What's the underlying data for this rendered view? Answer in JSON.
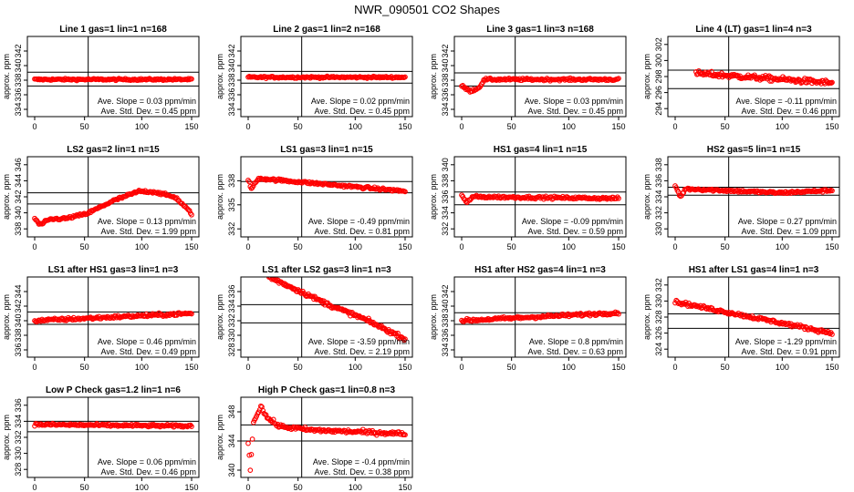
{
  "title": "NWR_090501  CO2 Shapes",
  "colors": {
    "points": "#ff0000",
    "axes": "#000000"
  },
  "chart_data": [
    {
      "type": "scatter",
      "title": "Line 1 gas=1 lin=1 n=168",
      "ylabel": "approx. ppm",
      "xlim": [
        0,
        150
      ],
      "xticks": [
        0,
        50,
        100,
        150
      ],
      "ylim": [
        333,
        344
      ],
      "yticks": [
        334,
        336,
        338,
        340,
        342
      ],
      "hlines": [
        337.2,
        339.1
      ],
      "vline": 50,
      "x_range": [
        0,
        150
      ],
      "curve": [
        [
          0,
          338.1
        ],
        [
          150,
          338.1
        ]
      ],
      "noise": 0.12,
      "slope_text": "Ave. Slope =  0.03  ppm/min",
      "std_text": "Ave. Std. Dev. =  0.45  ppm"
    },
    {
      "type": "scatter",
      "title": "Line 2 gas=1 lin=2 n=168",
      "ylabel": "approx. ppm",
      "xlim": [
        0,
        150
      ],
      "xticks": [
        0,
        50,
        100,
        150
      ],
      "ylim": [
        333,
        344
      ],
      "yticks": [
        334,
        336,
        338,
        340,
        342
      ],
      "hlines": [
        337.6,
        339.2
      ],
      "vline": 50,
      "x_range": [
        0,
        150
      ],
      "curve": [
        [
          0,
          338.4
        ],
        [
          150,
          338.4
        ]
      ],
      "noise": 0.12,
      "slope_text": "Ave. Slope =  0.02  ppm/min",
      "std_text": "Ave. Std. Dev. =  0.45  ppm"
    },
    {
      "type": "scatter",
      "title": "Line 3 gas=1 lin=3 n=168",
      "ylabel": "approx. ppm",
      "xlim": [
        0,
        150
      ],
      "xticks": [
        0,
        50,
        100,
        150
      ],
      "ylim": [
        333,
        344
      ],
      "yticks": [
        334,
        336,
        338,
        340,
        342
      ],
      "hlines": [
        337.2,
        339.0
      ],
      "vline": 50,
      "x_range": [
        0,
        150
      ],
      "curve": [
        [
          0,
          337.2
        ],
        [
          8,
          336.5
        ],
        [
          16,
          336.9
        ],
        [
          22,
          338.1
        ],
        [
          150,
          338.1
        ]
      ],
      "noise": 0.15,
      "slope_text": "Ave. Slope =  0.03  ppm/min",
      "std_text": "Ave. Std. Dev. =  0.45  ppm"
    },
    {
      "type": "scatter",
      "title": "Line 4 (LT) gas=1 lin=4 n=3",
      "ylabel": "approx. ppm",
      "xlim": [
        0,
        150
      ],
      "xticks": [
        0,
        50,
        100,
        150
      ],
      "ylim": [
        293,
        303
      ],
      "yticks": [
        294,
        296,
        298,
        300,
        302
      ],
      "hlines": [
        296.5,
        298.8
      ],
      "vline": 50,
      "x_range": [
        20,
        150
      ],
      "curve": [
        [
          20,
          298.4
        ],
        [
          150,
          297.2
        ]
      ],
      "noise": 0.3,
      "slope_text": "Ave. Slope =  -0.11  ppm/min",
      "std_text": "Ave. Std. Dev. =  0.46  ppm"
    },
    {
      "type": "scatter",
      "title": "LS2 gas=2 lin=1 n=15",
      "ylabel": "approx. ppm",
      "xlim": [
        0,
        150
      ],
      "xticks": [
        0,
        50,
        100,
        150
      ],
      "ylim": [
        337,
        347
      ],
      "yticks": [
        338,
        340,
        342,
        344,
        346
      ],
      "hlines": [
        341.1,
        342.5
      ],
      "vline": 50,
      "x_range": [
        0,
        150
      ],
      "curve": [
        [
          0,
          339.3
        ],
        [
          5,
          338.5
        ],
        [
          15,
          339.2
        ],
        [
          30,
          339.3
        ],
        [
          50,
          339.9
        ],
        [
          75,
          341.5
        ],
        [
          100,
          342.7
        ],
        [
          115,
          342.6
        ],
        [
          135,
          341.9
        ],
        [
          150,
          339.9
        ]
      ],
      "noise": 0.15,
      "slope_text": "Ave. Slope =  0.13  ppm/min",
      "std_text": "Ave. Std. Dev. =  1.99  ppm"
    },
    {
      "type": "scatter",
      "title": "LS1 gas=3 lin=1 n=15",
      "ylabel": "approx. ppm",
      "xlim": [
        0,
        150
      ],
      "xticks": [
        0,
        50,
        100,
        150
      ],
      "ylim": [
        331,
        341
      ],
      "yticks": [
        332,
        335,
        338
      ],
      "hlines": [
        336.5,
        337.9
      ],
      "vline": 50,
      "x_range": [
        0,
        150
      ],
      "curve": [
        [
          0,
          338.1
        ],
        [
          3,
          337.0
        ],
        [
          10,
          338.3
        ],
        [
          150,
          336.7
        ]
      ],
      "noise": 0.15,
      "slope_text": "Ave. Slope =  -0.49  ppm/min",
      "std_text": "Ave. Std. Dev. =  0.81  ppm"
    },
    {
      "type": "scatter",
      "title": "HS1 gas=4 lin=1 n=15",
      "ylabel": "approx. ppm",
      "xlim": [
        0,
        150
      ],
      "xticks": [
        0,
        50,
        100,
        150
      ],
      "ylim": [
        331,
        341
      ],
      "yticks": [
        332,
        334,
        336,
        338,
        340
      ],
      "hlines": [
        335.0,
        336.6
      ],
      "vline": 50,
      "x_range": [
        0,
        150
      ],
      "curve": [
        [
          0,
          336.2
        ],
        [
          5,
          335.2
        ],
        [
          10,
          336.0
        ],
        [
          150,
          335.8
        ]
      ],
      "noise": 0.15,
      "slope_text": "Ave. Slope =  -0.09  ppm/min",
      "std_text": "Ave. Std. Dev. =  0.59  ppm"
    },
    {
      "type": "scatter",
      "title": "HS2 gas=5 lin=1 n=15",
      "ylabel": "approx. ppm",
      "xlim": [
        0,
        150
      ],
      "xticks": [
        0,
        50,
        100,
        150
      ],
      "ylim": [
        329,
        339
      ],
      "yticks": [
        330,
        332,
        334,
        336,
        338
      ],
      "hlines": [
        334.2,
        335.2
      ],
      "vline": 50,
      "x_range": [
        0,
        150
      ],
      "curve": [
        [
          0,
          335.4
        ],
        [
          5,
          334.0
        ],
        [
          10,
          335.0
        ],
        [
          100,
          334.5
        ],
        [
          150,
          334.8
        ]
      ],
      "noise": 0.15,
      "slope_text": "Ave. Slope =  0.27  ppm/min",
      "std_text": "Ave. Std. Dev. =  1.09  ppm"
    },
    {
      "type": "scatter",
      "title": "LS1 after HS1 gas=3 lin=1 n=3",
      "ylabel": "approx. ppm",
      "xlim": [
        0,
        150
      ],
      "xticks": [
        0,
        50,
        100,
        150
      ],
      "ylim": [
        335,
        346
      ],
      "yticks": [
        336,
        338,
        340,
        342,
        344
      ],
      "hlines": [
        339.5,
        341.2
      ],
      "vline": 50,
      "x_range": [
        0,
        150
      ],
      "curve": [
        [
          0,
          340.0
        ],
        [
          150,
          341.0
        ]
      ],
      "noise": 0.2,
      "slope_text": "Ave. Slope =  0.46  ppm/min",
      "std_text": "Ave. Std. Dev. =  0.49  ppm"
    },
    {
      "type": "scatter",
      "title": "LS1 after LS2 gas=3 lin=1 n=3",
      "ylabel": "approx. ppm",
      "xlim": [
        0,
        150
      ],
      "xticks": [
        0,
        50,
        100,
        150
      ],
      "ylim": [
        327,
        338
      ],
      "yticks": [
        328,
        330,
        332,
        334,
        336
      ],
      "hlines": [
        331.7,
        334.2
      ],
      "vline": 50,
      "x_range": [
        20,
        150
      ],
      "curve": [
        [
          20,
          338.0
        ],
        [
          50,
          336.0
        ],
        [
          80,
          334.0
        ],
        [
          110,
          332.3
        ],
        [
          150,
          329.5
        ]
      ],
      "noise": 0.25,
      "slope_text": "Ave. Slope =  -3.59  ppm/min",
      "std_text": "Ave. Std. Dev. =  2.19  ppm"
    },
    {
      "type": "scatter",
      "title": "HS1 after HS2 gas=4 lin=1 n=3",
      "ylabel": "approx. ppm",
      "xlim": [
        0,
        150
      ],
      "xticks": [
        0,
        50,
        100,
        150
      ],
      "ylim": [
        333,
        344
      ],
      "yticks": [
        334,
        336,
        338,
        340,
        342
      ],
      "hlines": [
        337.5,
        339.1
      ],
      "vline": 50,
      "x_range": [
        0,
        150
      ],
      "curve": [
        [
          0,
          338.0
        ],
        [
          150,
          339.1
        ]
      ],
      "noise": 0.2,
      "slope_text": "Ave. Slope =  0.8  ppm/min",
      "std_text": "Ave. Std. Dev. =  0.63  ppm"
    },
    {
      "type": "scatter",
      "title": "HS1 after LS1 gas=4 lin=1 n=3",
      "ylabel": "approx. ppm",
      "xlim": [
        0,
        150
      ],
      "xticks": [
        0,
        50,
        100,
        150
      ],
      "ylim": [
        323,
        333
      ],
      "yticks": [
        324,
        326,
        328,
        330,
        332
      ],
      "hlines": [
        326.6,
        328.4
      ],
      "vline": 50,
      "x_range": [
        0,
        150
      ],
      "curve": [
        [
          0,
          329.9
        ],
        [
          150,
          326.0
        ]
      ],
      "noise": 0.2,
      "slope_text": "Ave. Slope =  -1.29  ppm/min",
      "std_text": "Ave. Std. Dev. =  0.91  ppm"
    },
    {
      "type": "scatter",
      "title": "Low P Check gas=1.2 lin=1 n=6",
      "ylabel": "approx. ppm",
      "xlim": [
        0,
        150
      ],
      "xticks": [
        0,
        50,
        100,
        150
      ],
      "ylim": [
        327,
        337
      ],
      "yticks": [
        328,
        330,
        332,
        334,
        336
      ],
      "hlines": [
        332.7,
        334.0
      ],
      "vline": 50,
      "x_range": [
        0,
        150
      ],
      "curve": [
        [
          0,
          333.6
        ],
        [
          150,
          333.4
        ]
      ],
      "noise": 0.15,
      "slope_text": "Ave. Slope =  0.06  ppm/min",
      "std_text": "Ave. Std. Dev. =  0.46  ppm"
    },
    {
      "type": "scatter",
      "title": "High P Check gas=1 lin=0.8 n=3",
      "ylabel": "approx. ppm",
      "xlim": [
        0,
        150
      ],
      "xticks": [
        0,
        50,
        100,
        150
      ],
      "ylim": [
        339,
        350
      ],
      "yticks": [
        340,
        344,
        348
      ],
      "hlines": [
        344.0,
        346.2
      ],
      "vline": 50,
      "x_range": [
        0,
        150
      ],
      "curve": [
        [
          0,
          344
        ],
        [
          2,
          340
        ],
        [
          5,
          346.5
        ],
        [
          12,
          348.8
        ],
        [
          18,
          347.2
        ],
        [
          30,
          346.0
        ],
        [
          60,
          345.5
        ],
        [
          150,
          345.0
        ]
      ],
      "noise": 0.25,
      "slope_text": "Ave. Slope =  -0.4  ppm/min",
      "std_text": "Ave. Std. Dev. =  0.38  ppm"
    }
  ]
}
